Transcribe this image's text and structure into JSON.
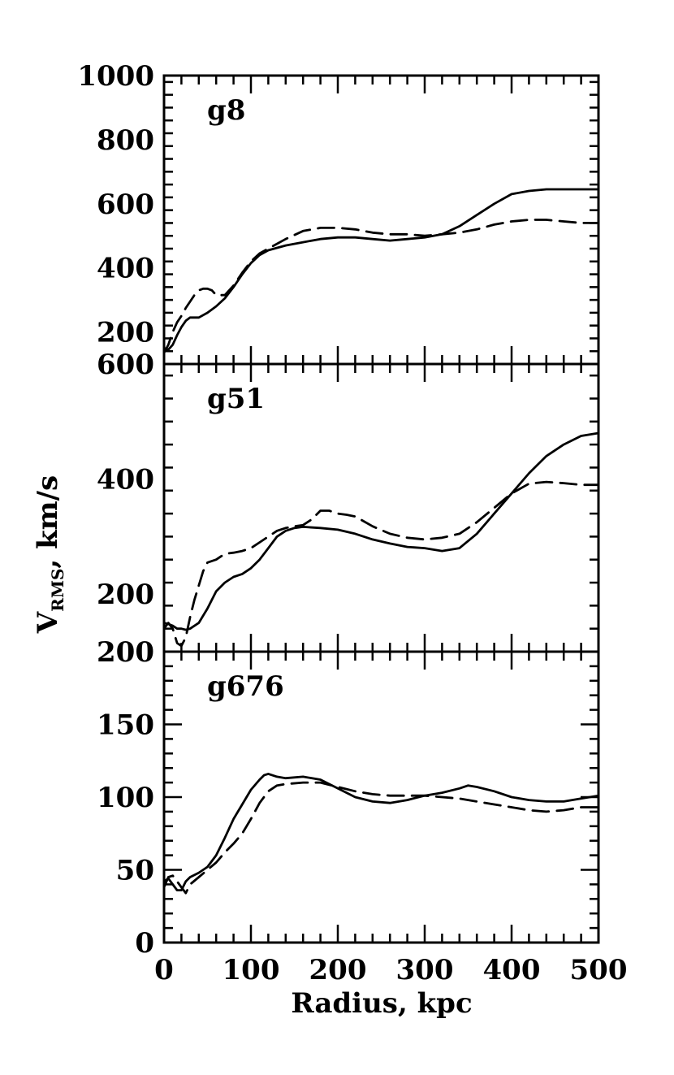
{
  "chart_data": {
    "type": "line",
    "xlabel": "Radius, kpc",
    "ylabel_main": "V",
    "ylabel_sub": "RMS",
    "ylabel_rest": ", km/s",
    "xlim": [
      0,
      500
    ],
    "x_ticks": [
      "0",
      "100",
      "200",
      "300",
      "400",
      "500"
    ],
    "panels": [
      {
        "label": "g8",
        "ylim": [
          100,
          1000
        ],
        "y_ticks": [
          200,
          400,
          600,
          800,
          1000
        ],
        "y_tick_labels": [
          "200",
          "400",
          "600",
          "800",
          "1000"
        ],
        "series": [
          {
            "style": "solid",
            "x": [
              0,
              5,
              10,
              15,
              20,
              25,
              30,
              40,
              50,
              60,
              70,
              80,
              90,
              100,
              110,
              120,
              140,
              160,
              180,
              200,
              220,
              240,
              260,
              280,
              300,
              320,
              340,
              360,
              380,
              400,
              420,
              440,
              460,
              480,
              500
            ],
            "y": [
              150,
              145,
              160,
              190,
              215,
              235,
              245,
              245,
              260,
              280,
              305,
              340,
              380,
              415,
              440,
              455,
              470,
              480,
              490,
              495,
              495,
              490,
              485,
              490,
              495,
              505,
              530,
              565,
              600,
              630,
              640,
              645,
              645,
              645,
              645
            ]
          },
          {
            "style": "dashed",
            "x": [
              0,
              5,
              10,
              15,
              20,
              25,
              30,
              35,
              40,
              45,
              50,
              55,
              60,
              70,
              80,
              90,
              100,
              110,
              120,
              140,
              160,
              180,
              200,
              220,
              240,
              260,
              280,
              300,
              320,
              340,
              360,
              380,
              400,
              420,
              440,
              460,
              480,
              500
            ],
            "y": [
              135,
              160,
              200,
              230,
              250,
              275,
              295,
              315,
              330,
              335,
              335,
              330,
              315,
              315,
              345,
              385,
              420,
              445,
              460,
              490,
              515,
              525,
              525,
              520,
              510,
              505,
              505,
              500,
              505,
              510,
              520,
              535,
              545,
              550,
              550,
              545,
              540,
              540
            ]
          }
        ]
      },
      {
        "label": "g51",
        "ylim": [
          100,
          600
        ],
        "y_ticks": [
          200,
          400,
          600
        ],
        "y_tick_labels": [
          "200",
          "400",
          "600"
        ],
        "series": [
          {
            "style": "solid",
            "x": [
              0,
              5,
              10,
              15,
              20,
              25,
              30,
              40,
              50,
              60,
              70,
              80,
              90,
              100,
              110,
              120,
              130,
              140,
              150,
              160,
              180,
              200,
              220,
              240,
              260,
              280,
              300,
              320,
              340,
              360,
              380,
              400,
              420,
              440,
              460,
              480,
              500
            ],
            "y": [
              150,
              148,
              145,
              140,
              140,
              138,
              140,
              150,
              175,
              205,
              220,
              230,
              235,
              245,
              260,
              280,
              300,
              310,
              315,
              317,
              315,
              312,
              305,
              295,
              288,
              282,
              280,
              275,
              280,
              305,
              340,
              375,
              410,
              440,
              460,
              475,
              480
            ]
          },
          {
            "style": "dashed",
            "x": [
              0,
              5,
              10,
              15,
              20,
              25,
              30,
              35,
              40,
              45,
              50,
              60,
              70,
              80,
              90,
              100,
              110,
              120,
              130,
              140,
              150,
              160,
              170,
              180,
              190,
              200,
              210,
              220,
              240,
              260,
              280,
              300,
              320,
              340,
              360,
              380,
              400,
              420,
              440,
              460,
              480,
              500
            ],
            "y": [
              140,
              150,
              140,
              115,
              110,
              125,
              160,
              190,
              215,
              240,
              255,
              260,
              270,
              272,
              275,
              280,
              290,
              300,
              310,
              315,
              318,
              320,
              330,
              345,
              345,
              340,
              338,
              335,
              318,
              305,
              298,
              295,
              298,
              305,
              325,
              350,
              375,
              392,
              395,
              393,
              390,
              390
            ]
          }
        ]
      },
      {
        "label": "g676",
        "ylim": [
          0,
          200
        ],
        "y_ticks": [
          0,
          50,
          100,
          150,
          200
        ],
        "y_tick_labels": [
          "0",
          "50",
          "100",
          "150",
          "200"
        ],
        "series": [
          {
            "style": "solid",
            "x": [
              0,
              5,
              10,
              15,
              20,
              25,
              30,
              40,
              50,
              60,
              70,
              80,
              90,
              100,
              110,
              115,
              120,
              130,
              140,
              160,
              180,
              200,
              220,
              240,
              260,
              280,
              300,
              320,
              340,
              350,
              360,
              380,
              400,
              420,
              440,
              460,
              480,
              500
            ],
            "y": [
              42,
              44,
              40,
              36,
              36,
              42,
              45,
              48,
              52,
              60,
              72,
              85,
              95,
              105,
              112,
              115,
              116,
              114,
              113,
              114,
              112,
              106,
              100,
              97,
              96,
              98,
              101,
              103,
              106,
              108,
              107,
              104,
              100,
              98,
              97,
              97,
              99,
              101
            ]
          },
          {
            "style": "dashed",
            "x": [
              0,
              5,
              10,
              15,
              20,
              25,
              30,
              40,
              50,
              60,
              70,
              80,
              90,
              100,
              110,
              120,
              130,
              140,
              160,
              180,
              200,
              220,
              240,
              260,
              280,
              300,
              320,
              340,
              360,
              380,
              400,
              420,
              440,
              460,
              480,
              500
            ],
            "y": [
              38,
              45,
              46,
              42,
              38,
              34,
              40,
              45,
              50,
              55,
              62,
              68,
              75,
              85,
              96,
              104,
              108,
              109,
              110,
              110,
              107,
              104,
              102,
              101,
              101,
              101,
              100,
              99,
              97,
              95,
              93,
              91,
              90,
              91,
              93,
              93
            ]
          }
        ]
      }
    ]
  }
}
